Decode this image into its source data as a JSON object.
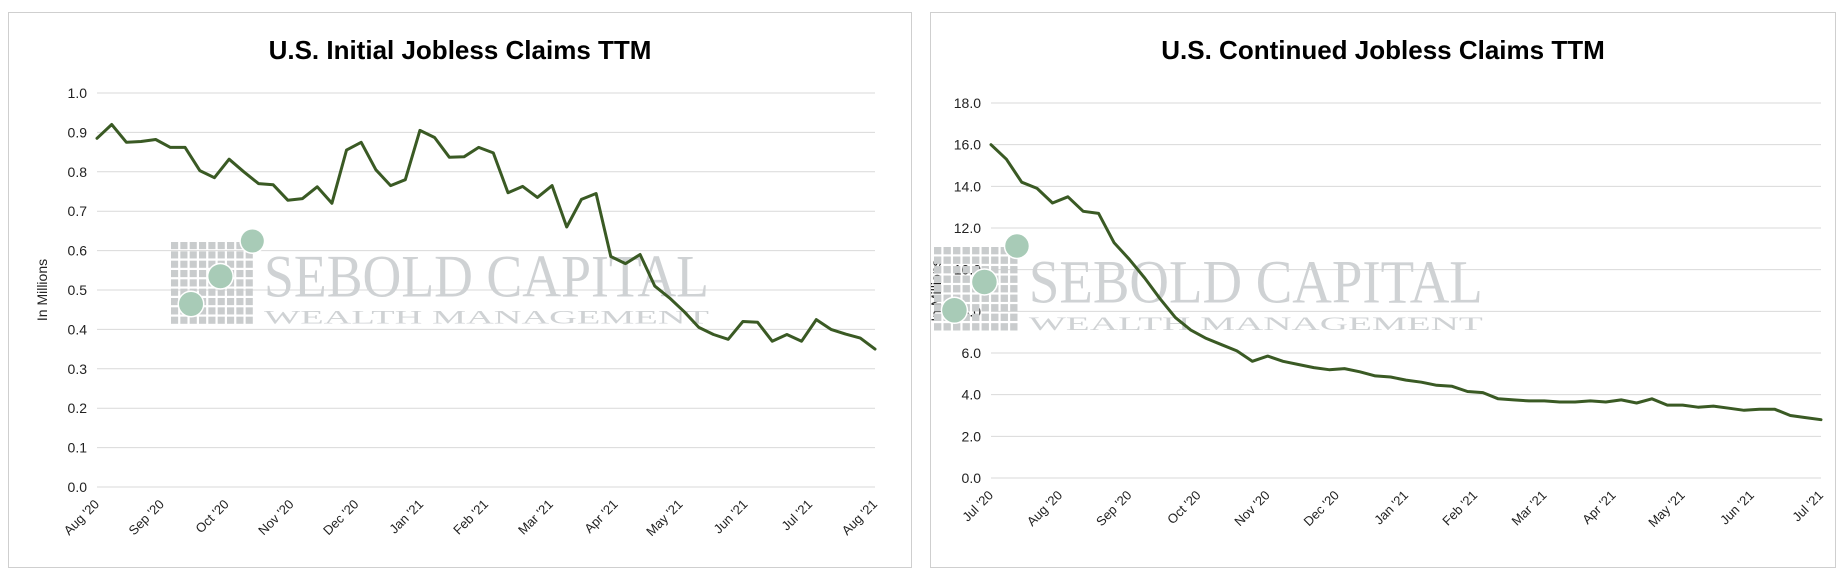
{
  "watermark": {
    "name": "SEBOLD CAPITAL",
    "tagline": "WEALTH MANAGEMENT",
    "colors": {
      "grid": "#c9cccd",
      "dots": "#a8cbb7",
      "text": "#cfd2d4"
    }
  },
  "chart_data": [
    {
      "type": "line",
      "title": "U.S. Initial Jobless Claims TTM",
      "ylabel": "In Millions",
      "xlabel": "",
      "ylim": [
        0,
        1.0
      ],
      "yticks": [
        "0.0",
        "0.1",
        "0.2",
        "0.3",
        "0.4",
        "0.5",
        "0.6",
        "0.7",
        "0.8",
        "0.9",
        "1.0"
      ],
      "xticks": [
        "Aug '20",
        "Sep '20",
        "Oct '20",
        "Nov '20",
        "Dec '20",
        "Jan '21",
        "Feb '21",
        "Mar '21",
        "Apr '21",
        "May '21",
        "Jun '21",
        "Jul '21",
        "Aug '21"
      ],
      "grid": true,
      "line_color": "#3a5a24",
      "values": [
        0.885,
        0.92,
        0.875,
        0.877,
        0.882,
        0.862,
        0.862,
        0.803,
        0.785,
        0.832,
        0.8,
        0.77,
        0.767,
        0.728,
        0.732,
        0.762,
        0.72,
        0.855,
        0.875,
        0.805,
        0.765,
        0.78,
        0.905,
        0.887,
        0.837,
        0.838,
        0.862,
        0.848,
        0.747,
        0.763,
        0.735,
        0.765,
        0.66,
        0.73,
        0.745,
        0.585,
        0.567,
        0.59,
        0.51,
        0.48,
        0.445,
        0.405,
        0.387,
        0.375,
        0.42,
        0.418,
        0.37,
        0.387,
        0.37,
        0.425,
        0.4,
        0.388,
        0.378,
        0.35
      ]
    },
    {
      "type": "line",
      "title": "U.S. Continued Jobless Claims TTM",
      "ylabel": "In Millions",
      "xlabel": "",
      "ylim": [
        0,
        18.0
      ],
      "yticks": [
        "0.0",
        "2.0",
        "4.0",
        "6.0",
        "8.0",
        "10.0",
        "12.0",
        "14.0",
        "16.0",
        "18.0"
      ],
      "xticks": [
        "Jul '20",
        "Aug '20",
        "Sep '20",
        "Oct '20",
        "Nov '20",
        "Dec '20",
        "Jan '21",
        "Feb '21",
        "Mar '21",
        "Apr '21",
        "May '21",
        "Jun '21",
        "Jul '21"
      ],
      "grid": true,
      "line_color": "#3a5a24",
      "values": [
        16.0,
        15.3,
        14.2,
        13.9,
        13.2,
        13.5,
        12.8,
        12.7,
        11.3,
        10.5,
        9.6,
        8.6,
        7.7,
        7.1,
        6.7,
        6.4,
        6.1,
        5.6,
        5.85,
        5.6,
        5.45,
        5.3,
        5.2,
        5.25,
        5.1,
        4.9,
        4.85,
        4.7,
        4.6,
        4.45,
        4.4,
        4.15,
        4.1,
        3.8,
        3.75,
        3.7,
        3.7,
        3.65,
        3.65,
        3.7,
        3.65,
        3.75,
        3.6,
        3.8,
        3.5,
        3.5,
        3.4,
        3.45,
        3.35,
        3.25,
        3.3,
        3.3,
        3.0,
        2.9,
        2.8
      ]
    }
  ]
}
